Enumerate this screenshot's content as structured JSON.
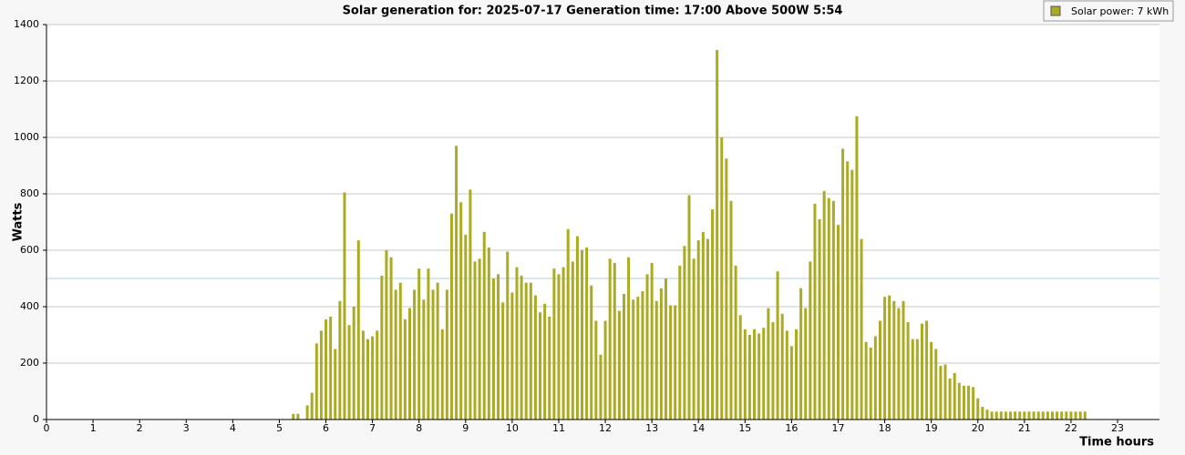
{
  "chart_data": {
    "type": "bar",
    "title": "Solar generation for: 2025-07-17 Generation time: 17:00 Above 500W 5:54",
    "ylabel": "Watts",
    "xlabel": "Time hours",
    "xlim": [
      0,
      23.9
    ],
    "ylim": [
      0,
      1400
    ],
    "xticks": [
      0,
      1,
      2,
      3,
      4,
      5,
      6,
      7,
      8,
      9,
      10,
      11,
      12,
      13,
      14,
      15,
      16,
      17,
      18,
      19,
      20,
      21,
      22,
      23
    ],
    "yticks": [
      0,
      200,
      400,
      600,
      800,
      1000,
      1200,
      1400
    ],
    "grid": true,
    "threshold": 500,
    "legend": "upper right",
    "series": [
      {
        "name": "Solar power: 7 kWh",
        "color": "#abab22",
        "x": [
          5.3,
          5.4,
          5.6,
          5.7,
          5.8,
          5.9,
          6.0,
          6.1,
          6.2,
          6.3,
          6.4,
          6.5,
          6.6,
          6.7,
          6.8,
          6.9,
          7.0,
          7.1,
          7.2,
          7.3,
          7.4,
          7.5,
          7.6,
          7.7,
          7.8,
          7.9,
          8.0,
          8.1,
          8.2,
          8.3,
          8.4,
          8.5,
          8.6,
          8.7,
          8.8,
          8.9,
          9.0,
          9.1,
          9.2,
          9.3,
          9.4,
          9.5,
          9.6,
          9.7,
          9.8,
          9.9,
          10.0,
          10.1,
          10.2,
          10.3,
          10.4,
          10.5,
          10.6,
          10.7,
          10.8,
          10.9,
          11.0,
          11.1,
          11.2,
          11.3,
          11.4,
          11.5,
          11.6,
          11.7,
          11.8,
          11.9,
          12.0,
          12.1,
          12.2,
          12.3,
          12.4,
          12.5,
          12.6,
          12.7,
          12.8,
          12.9,
          13.0,
          13.1,
          13.2,
          13.3,
          13.4,
          13.5,
          13.6,
          13.7,
          13.8,
          13.9,
          14.0,
          14.1,
          14.2,
          14.3,
          14.4,
          14.5,
          14.6,
          14.7,
          14.8,
          14.9,
          15.0,
          15.1,
          15.2,
          15.3,
          15.4,
          15.5,
          15.6,
          15.7,
          15.8,
          15.9,
          16.0,
          16.1,
          16.2,
          16.3,
          16.4,
          16.5,
          16.6,
          16.7,
          16.8,
          16.9,
          17.0,
          17.1,
          17.2,
          17.3,
          17.4,
          17.5,
          17.6,
          17.7,
          17.8,
          17.9,
          18.0,
          18.1,
          18.2,
          18.3,
          18.4,
          18.5,
          18.6,
          18.7,
          18.8,
          18.9,
          19.0,
          19.1,
          19.2,
          19.3,
          19.4,
          19.5,
          19.6,
          19.7,
          19.8,
          19.9,
          20.0,
          20.1,
          20.2,
          20.3,
          20.4,
          20.5,
          20.6,
          20.7,
          20.8,
          20.9,
          21.0,
          21.1,
          21.2,
          21.3,
          21.4,
          21.5,
          21.6,
          21.7,
          21.8,
          21.9,
          22.0,
          22.1,
          22.2,
          22.3
        ],
        "values": [
          20,
          20,
          50,
          95,
          270,
          315,
          355,
          365,
          250,
          420,
          805,
          335,
          400,
          635,
          315,
          285,
          295,
          315,
          510,
          600,
          575,
          460,
          485,
          355,
          395,
          460,
          535,
          425,
          535,
          460,
          485,
          320,
          460,
          730,
          970,
          770,
          655,
          815,
          560,
          570,
          665,
          610,
          500,
          515,
          415,
          595,
          450,
          540,
          510,
          485,
          485,
          440,
          380,
          410,
          365,
          535,
          515,
          540,
          675,
          560,
          650,
          600,
          610,
          475,
          350,
          230,
          350,
          570,
          555,
          385,
          445,
          575,
          425,
          435,
          455,
          515,
          555,
          420,
          465,
          500,
          405,
          405,
          545,
          615,
          795,
          570,
          635,
          665,
          640,
          745,
          1310,
          1000,
          925,
          775,
          545,
          370,
          320,
          300,
          320,
          305,
          325,
          395,
          345,
          525,
          375,
          315,
          260,
          320,
          465,
          395,
          560,
          765,
          710,
          810,
          785,
          775,
          690,
          960,
          915,
          885,
          1075,
          640,
          275,
          255,
          295,
          350,
          435,
          440,
          420,
          395,
          420,
          345,
          285,
          285,
          340,
          350,
          275,
          250,
          190,
          195,
          145,
          165,
          130,
          120,
          120,
          115,
          75,
          45,
          35,
          28,
          28,
          28,
          28,
          28,
          28,
          28,
          28,
          28,
          28,
          28,
          28,
          28,
          28,
          28,
          28,
          28,
          28,
          28,
          28,
          28
        ]
      }
    ]
  }
}
